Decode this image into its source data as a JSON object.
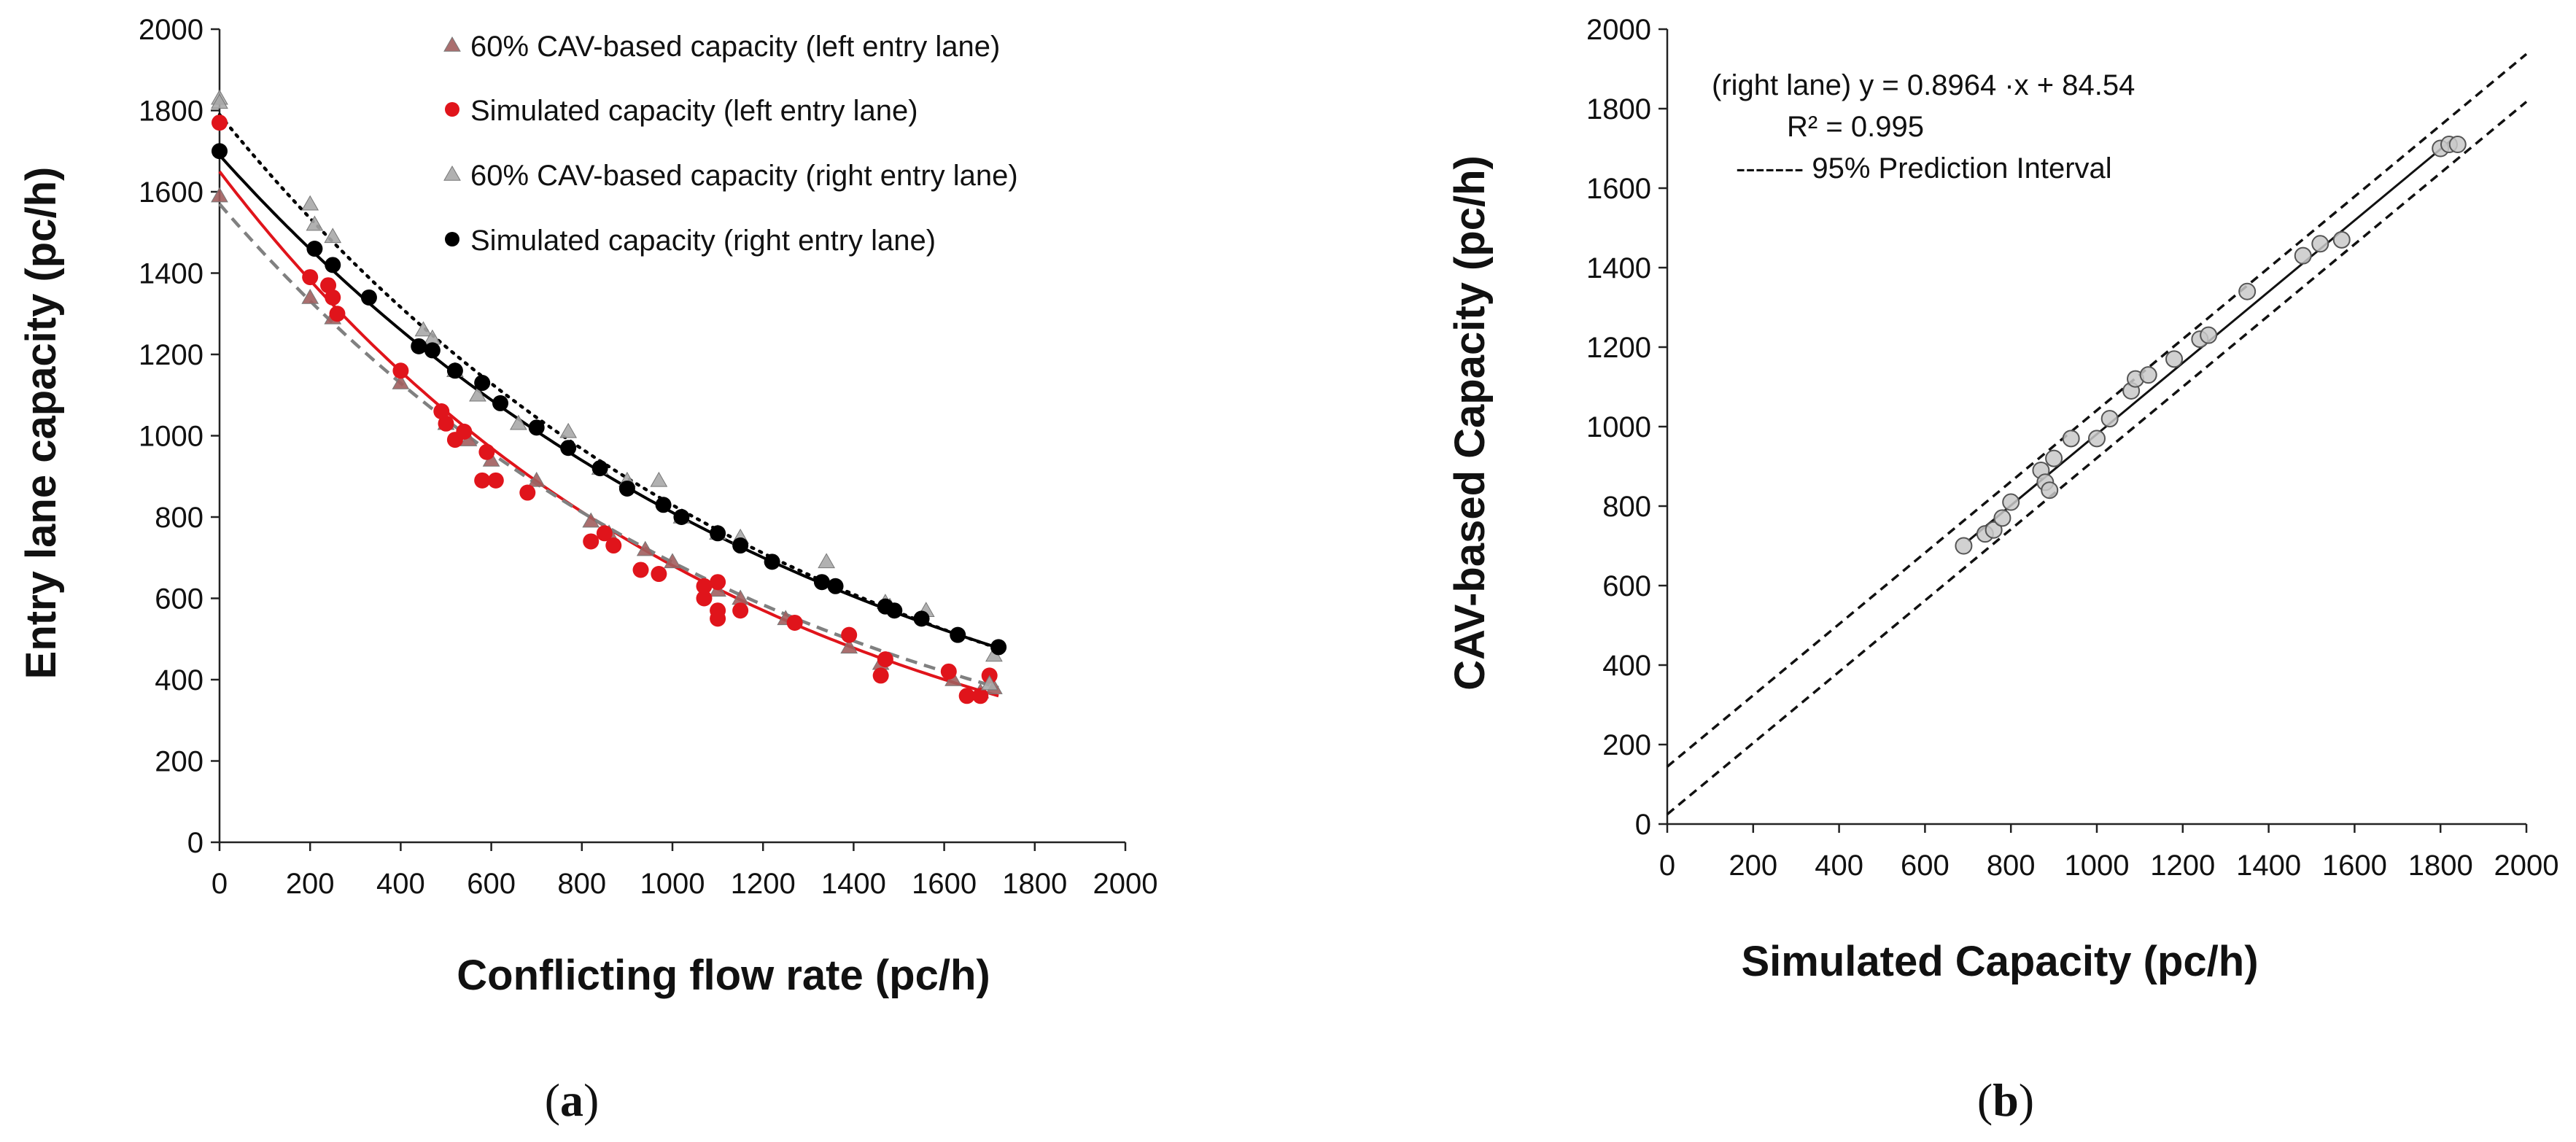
{
  "chart_data": [
    {
      "type": "scatter",
      "panel_label": "a",
      "xlabel": "Conflicting flow rate (pc/h)",
      "ylabel": "Entry lane capacity (pc/h)",
      "xlim": [
        0,
        2000
      ],
      "ylim": [
        0,
        2000
      ],
      "xticks": [
        "0",
        "200",
        "400",
        "600",
        "800",
        "1000",
        "1200",
        "1400",
        "1600",
        "1800",
        "2000"
      ],
      "yticks": [
        "0",
        "200",
        "400",
        "600",
        "800",
        "1000",
        "1200",
        "1400",
        "1600",
        "1800",
        "2000"
      ],
      "legend_position": "top-right",
      "series": [
        {
          "name": "60% CAV-based capacity (left entry lane)",
          "marker": "triangle",
          "color": "#a15e5e",
          "points": [
            [
              0,
              1590
            ],
            [
              200,
              1340
            ],
            [
              250,
              1290
            ],
            [
              400,
              1130
            ],
            [
              500,
              1030
            ],
            [
              550,
              990
            ],
            [
              600,
              940
            ],
            [
              700,
              890
            ],
            [
              820,
              790
            ],
            [
              860,
              760
            ],
            [
              940,
              720
            ],
            [
              1000,
              690
            ],
            [
              1100,
              620
            ],
            [
              1150,
              600
            ],
            [
              1250,
              550
            ],
            [
              1390,
              480
            ],
            [
              1460,
              440
            ],
            [
              1620,
              400
            ],
            [
              1680,
              370
            ],
            [
              1710,
              380
            ]
          ]
        },
        {
          "name": "Simulated capacity (left entry lane)",
          "marker": "circle",
          "color": "#e0141b",
          "points": [
            [
              0,
              1770
            ],
            [
              200,
              1390
            ],
            [
              240,
              1370
            ],
            [
              250,
              1340
            ],
            [
              260,
              1300
            ],
            [
              400,
              1160
            ],
            [
              490,
              1060
            ],
            [
              500,
              1030
            ],
            [
              520,
              990
            ],
            [
              540,
              1010
            ],
            [
              580,
              890
            ],
            [
              590,
              960
            ],
            [
              610,
              890
            ],
            [
              680,
              860
            ],
            [
              820,
              740
            ],
            [
              850,
              760
            ],
            [
              870,
              730
            ],
            [
              930,
              670
            ],
            [
              970,
              660
            ],
            [
              1070,
              630
            ],
            [
              1070,
              600
            ],
            [
              1100,
              640
            ],
            [
              1100,
              570
            ],
            [
              1100,
              550
            ],
            [
              1150,
              570
            ],
            [
              1270,
              540
            ],
            [
              1390,
              510
            ],
            [
              1460,
              410
            ],
            [
              1470,
              450
            ],
            [
              1610,
              420
            ],
            [
              1650,
              360
            ],
            [
              1680,
              360
            ],
            [
              1700,
              410
            ]
          ]
        },
        {
          "name": "60% CAV-based capacity (right entry lane)",
          "marker": "triangle",
          "color": "#a8a8a8",
          "points": [
            [
              0,
              1830
            ],
            [
              0,
              1820
            ],
            [
              200,
              1570
            ],
            [
              210,
              1520
            ],
            [
              250,
              1490
            ],
            [
              450,
              1260
            ],
            [
              470,
              1240
            ],
            [
              520,
              1160
            ],
            [
              570,
              1100
            ],
            [
              660,
              1030
            ],
            [
              770,
              1010
            ],
            [
              840,
              920
            ],
            [
              900,
              890
            ],
            [
              970,
              890
            ],
            [
              1020,
              800
            ],
            [
              1100,
              760
            ],
            [
              1150,
              750
            ],
            [
              1340,
              690
            ],
            [
              1470,
              590
            ],
            [
              1480,
              580
            ],
            [
              1560,
              570
            ],
            [
              1700,
              390
            ],
            [
              1710,
              460
            ]
          ]
        },
        {
          "name": "Simulated capacity (right entry lane)",
          "marker": "circle",
          "color": "#000000",
          "points": [
            [
              0,
              1700
            ],
            [
              210,
              1460
            ],
            [
              250,
              1420
            ],
            [
              330,
              1340
            ],
            [
              440,
              1220
            ],
            [
              470,
              1210
            ],
            [
              520,
              1160
            ],
            [
              580,
              1130
            ],
            [
              620,
              1080
            ],
            [
              700,
              1020
            ],
            [
              770,
              970
            ],
            [
              840,
              920
            ],
            [
              900,
              870
            ],
            [
              980,
              830
            ],
            [
              1020,
              800
            ],
            [
              1100,
              760
            ],
            [
              1150,
              730
            ],
            [
              1220,
              690
            ],
            [
              1330,
              640
            ],
            [
              1360,
              630
            ],
            [
              1470,
              580
            ],
            [
              1490,
              570
            ],
            [
              1550,
              550
            ],
            [
              1630,
              510
            ],
            [
              1720,
              480
            ]
          ]
        }
      ],
      "trendlines": [
        {
          "series": "Simulated capacity (right entry lane)",
          "style": "solid",
          "color": "#000000",
          "form": "exponential",
          "a": 1690,
          "b": -0.000734
        },
        {
          "series": "60% CAV-based capacity (right entry lane)",
          "style": "dotted",
          "color": "#000000",
          "form": "exponential",
          "a": 1790,
          "b": -0.000769
        },
        {
          "series": "Simulated capacity (left entry lane)",
          "style": "solid",
          "color": "#e0141b",
          "form": "exponential",
          "a": 1650,
          "b": -0.000885
        },
        {
          "series": "60% CAV-based capacity (left entry lane)",
          "style": "dashed",
          "color": "#808080",
          "form": "exponential",
          "a": 1570,
          "b": -0.000824
        }
      ]
    },
    {
      "type": "scatter",
      "panel_label": "b",
      "xlabel": "Simulated Capacity (pc/h)",
      "ylabel": "CAV-based Capacity (pc/h)",
      "xlim": [
        0,
        2000
      ],
      "ylim": [
        0,
        2000
      ],
      "xticks": [
        "0",
        "200",
        "400",
        "600",
        "800",
        "1000",
        "1200",
        "1400",
        "1600",
        "1800",
        "2000"
      ],
      "yticks": [
        "0",
        "200",
        "400",
        "600",
        "800",
        "1000",
        "1200",
        "1400",
        "1600",
        "1800",
        "2000"
      ],
      "equation": "(right lane) y = 0.8964 ·x + 84.54",
      "r_squared": "R² = 0.995",
      "interval_label": "------- 95% Prediction Interval",
      "fit": {
        "slope": 0.8964,
        "intercept": 84.54,
        "x_range": [
          700,
          1830
        ]
      },
      "prediction_interval": {
        "offset": 60
      },
      "points": [
        [
          690,
          700
        ],
        [
          740,
          730
        ],
        [
          760,
          740
        ],
        [
          780,
          770
        ],
        [
          800,
          810
        ],
        [
          870,
          890
        ],
        [
          880,
          860
        ],
        [
          890,
          840
        ],
        [
          900,
          920
        ],
        [
          940,
          970
        ],
        [
          1000,
          970
        ],
        [
          1030,
          1020
        ],
        [
          1080,
          1090
        ],
        [
          1090,
          1120
        ],
        [
          1120,
          1130
        ],
        [
          1180,
          1170
        ],
        [
          1240,
          1220
        ],
        [
          1260,
          1230
        ],
        [
          1350,
          1340
        ],
        [
          1480,
          1430
        ],
        [
          1520,
          1460
        ],
        [
          1570,
          1470
        ],
        [
          1800,
          1700
        ],
        [
          1820,
          1710
        ],
        [
          1840,
          1710
        ]
      ]
    }
  ],
  "caption_a": "a",
  "caption_b": "b"
}
